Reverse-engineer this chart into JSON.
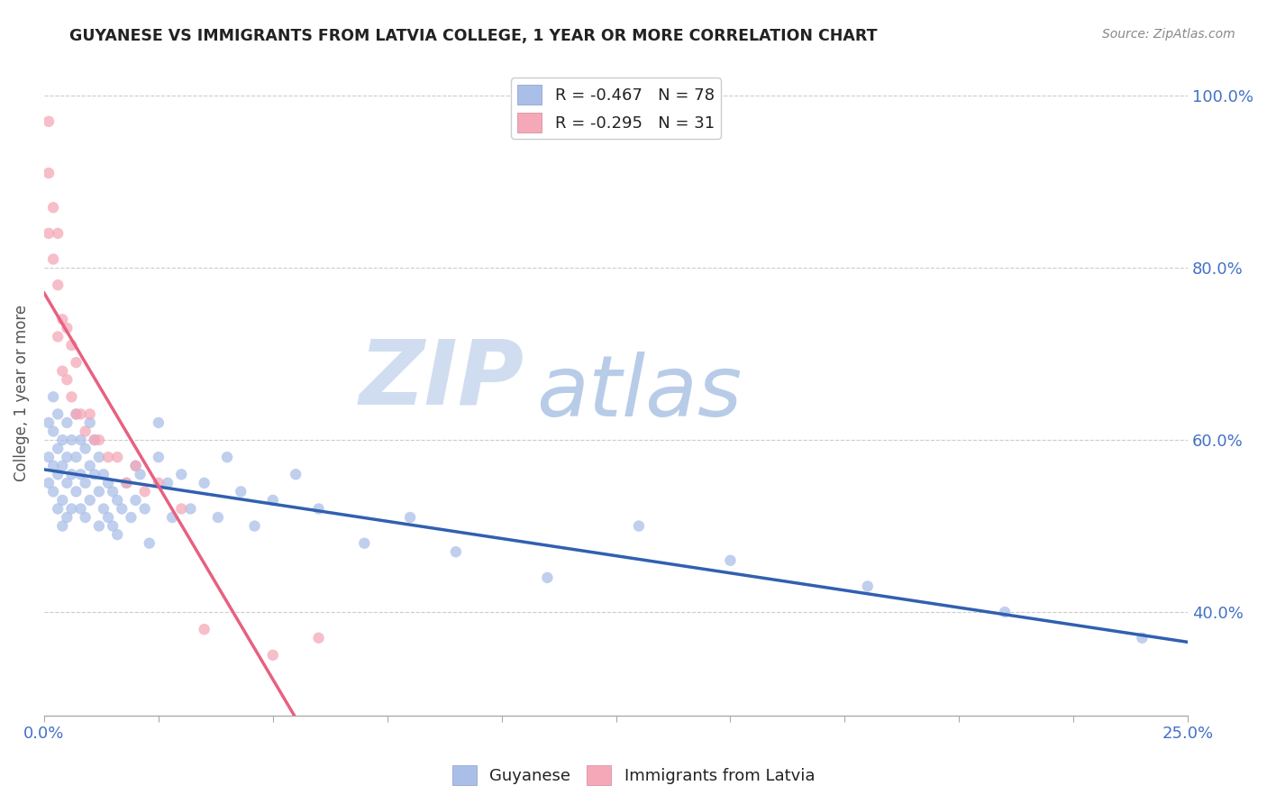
{
  "title": "GUYANESE VS IMMIGRANTS FROM LATVIA COLLEGE, 1 YEAR OR MORE CORRELATION CHART",
  "source": "Source: ZipAtlas.com",
  "ylabel": "College, 1 year or more",
  "ylabel_right_top": "100.0%",
  "ylabel_right_80": "80.0%",
  "ylabel_right_60": "60.0%",
  "ylabel_right_40": "40.0%",
  "xlim": [
    0.0,
    0.25
  ],
  "ylim": [
    0.28,
    1.03
  ],
  "yticks": [
    0.4,
    0.6,
    0.8,
    1.0
  ],
  "blue_label": "Guyanese",
  "pink_label": "Immigrants from Latvia",
  "blue_R": -0.467,
  "blue_N": 78,
  "pink_R": -0.295,
  "pink_N": 31,
  "blue_color": "#aabfe8",
  "pink_color": "#f4a8b8",
  "blue_line_color": "#3060b0",
  "pink_line_color": "#e86080",
  "watermark_zip": "ZIP",
  "watermark_atlas": "atlas",
  "watermark_zip_color": "#d0ddf0",
  "watermark_atlas_color": "#b8cce8",
  "blue_x": [
    0.001,
    0.001,
    0.001,
    0.002,
    0.002,
    0.002,
    0.002,
    0.003,
    0.003,
    0.003,
    0.003,
    0.004,
    0.004,
    0.004,
    0.004,
    0.005,
    0.005,
    0.005,
    0.005,
    0.006,
    0.006,
    0.006,
    0.007,
    0.007,
    0.007,
    0.008,
    0.008,
    0.008,
    0.009,
    0.009,
    0.009,
    0.01,
    0.01,
    0.01,
    0.011,
    0.011,
    0.012,
    0.012,
    0.012,
    0.013,
    0.013,
    0.014,
    0.014,
    0.015,
    0.015,
    0.016,
    0.016,
    0.017,
    0.018,
    0.019,
    0.02,
    0.02,
    0.021,
    0.022,
    0.023,
    0.025,
    0.025,
    0.027,
    0.028,
    0.03,
    0.032,
    0.035,
    0.038,
    0.04,
    0.043,
    0.046,
    0.05,
    0.055,
    0.06,
    0.07,
    0.08,
    0.09,
    0.11,
    0.13,
    0.15,
    0.18,
    0.21,
    0.24
  ],
  "blue_y": [
    0.62,
    0.58,
    0.55,
    0.65,
    0.61,
    0.57,
    0.54,
    0.63,
    0.59,
    0.56,
    0.52,
    0.6,
    0.57,
    0.53,
    0.5,
    0.62,
    0.58,
    0.55,
    0.51,
    0.6,
    0.56,
    0.52,
    0.63,
    0.58,
    0.54,
    0.6,
    0.56,
    0.52,
    0.59,
    0.55,
    0.51,
    0.62,
    0.57,
    0.53,
    0.6,
    0.56,
    0.58,
    0.54,
    0.5,
    0.56,
    0.52,
    0.55,
    0.51,
    0.54,
    0.5,
    0.53,
    0.49,
    0.52,
    0.55,
    0.51,
    0.57,
    0.53,
    0.56,
    0.52,
    0.48,
    0.62,
    0.58,
    0.55,
    0.51,
    0.56,
    0.52,
    0.55,
    0.51,
    0.58,
    0.54,
    0.5,
    0.53,
    0.56,
    0.52,
    0.48,
    0.51,
    0.47,
    0.44,
    0.5,
    0.46,
    0.43,
    0.4,
    0.37
  ],
  "pink_x": [
    0.001,
    0.001,
    0.001,
    0.002,
    0.002,
    0.003,
    0.003,
    0.003,
    0.004,
    0.004,
    0.005,
    0.005,
    0.006,
    0.006,
    0.007,
    0.007,
    0.008,
    0.009,
    0.01,
    0.011,
    0.012,
    0.014,
    0.016,
    0.018,
    0.02,
    0.022,
    0.025,
    0.03,
    0.035,
    0.05,
    0.06
  ],
  "pink_y": [
    0.97,
    0.91,
    0.84,
    0.87,
    0.81,
    0.84,
    0.78,
    0.72,
    0.74,
    0.68,
    0.73,
    0.67,
    0.71,
    0.65,
    0.69,
    0.63,
    0.63,
    0.61,
    0.63,
    0.6,
    0.6,
    0.58,
    0.58,
    0.55,
    0.57,
    0.54,
    0.55,
    0.52,
    0.38,
    0.35,
    0.37
  ]
}
